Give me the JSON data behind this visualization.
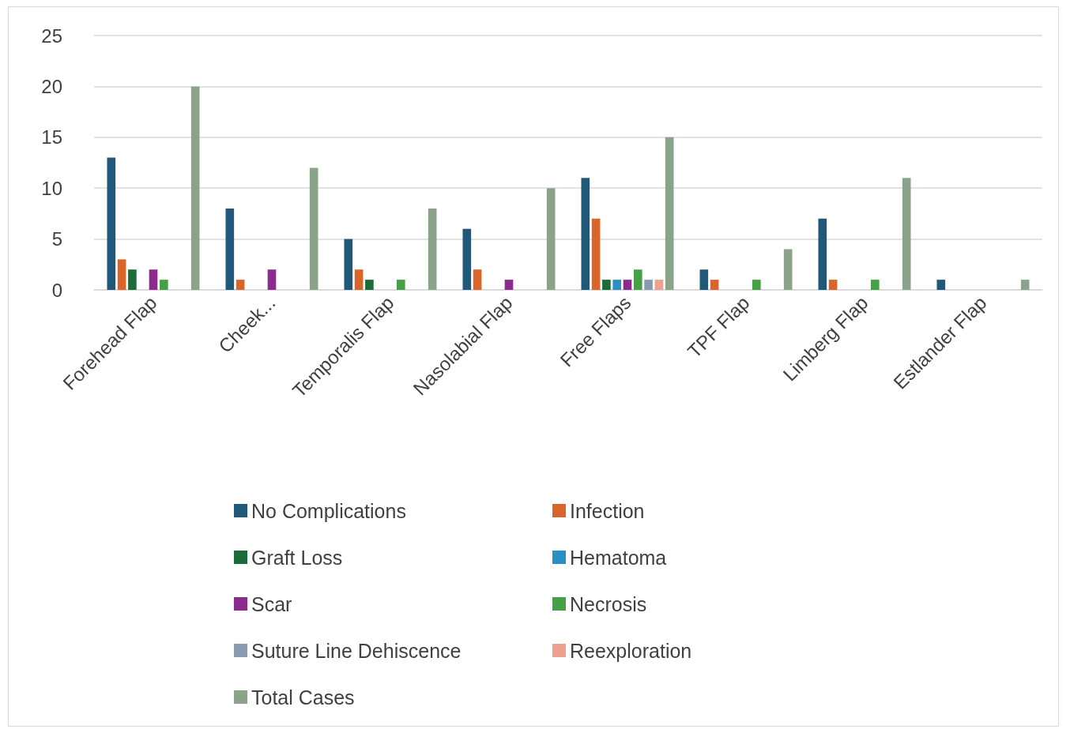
{
  "chart_data": {
    "type": "bar",
    "categories": [
      "Forehead Flap",
      "Cheek...",
      "Temporalis Flap",
      "Nasolabial Flap",
      "Free Flaps",
      "TPF Flap",
      "Limberg Flap",
      "Estlander Flap"
    ],
    "series": [
      {
        "name": "No Complications",
        "color": "#1f5878",
        "values": [
          13,
          8,
          5,
          6,
          11,
          2,
          7,
          1
        ]
      },
      {
        "name": "Infection",
        "color": "#d9652b",
        "values": [
          3,
          1,
          2,
          2,
          7,
          1,
          1,
          null
        ]
      },
      {
        "name": "Graft Loss",
        "color": "#1e6b3a",
        "values": [
          2,
          null,
          1,
          null,
          1,
          null,
          null,
          null
        ]
      },
      {
        "name": "Hematoma",
        "color": "#2a8fc4",
        "values": [
          null,
          null,
          null,
          null,
          1,
          null,
          null,
          null
        ]
      },
      {
        "name": "Scar",
        "color": "#8b2a8f",
        "values": [
          2,
          2,
          null,
          1,
          1,
          null,
          null,
          null
        ]
      },
      {
        "name": "Necrosis",
        "color": "#46a046",
        "values": [
          1,
          null,
          1,
          null,
          2,
          1,
          1,
          null
        ]
      },
      {
        "name": "Suture Line Dehiscence",
        "color": "#8a9bb0",
        "values": [
          null,
          null,
          null,
          null,
          1,
          null,
          null,
          null
        ]
      },
      {
        "name": "Reexploration",
        "color": "#eea08f",
        "values": [
          null,
          null,
          null,
          null,
          1,
          null,
          null,
          null
        ]
      },
      {
        "name": "Total Cases",
        "color": "#8aa38a",
        "values": [
          20,
          12,
          8,
          10,
          15,
          4,
          11,
          1
        ]
      }
    ],
    "ylim": [
      0,
      25
    ],
    "yticks": [
      0,
      5,
      10,
      15,
      20,
      25
    ],
    "grid": "y",
    "legend": "bottom"
  }
}
